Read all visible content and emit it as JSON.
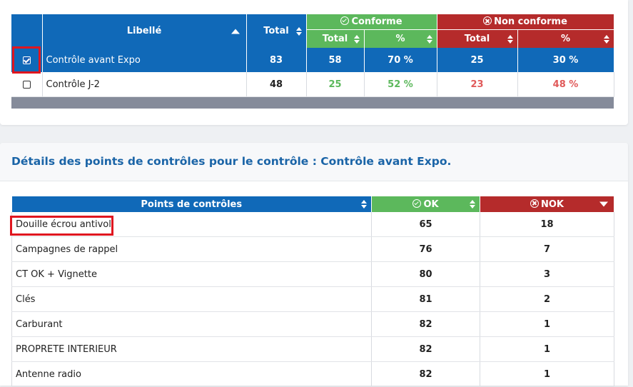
{
  "summary": {
    "headers": {
      "libelle": "Libellé",
      "total": "Total",
      "conforme": "Conforme",
      "non_conforme": "Non conforme",
      "sub_total": "Total",
      "sub_pct": "%"
    },
    "rows": [
      {
        "selected": true,
        "label": "Contrôle avant Expo",
        "total": "83",
        "c_total": "58",
        "c_pct": "70 %",
        "nc_total": "25",
        "nc_pct": "30 %"
      },
      {
        "selected": false,
        "label": "Contrôle J-2",
        "total": "48",
        "c_total": "25",
        "c_pct": "52 %",
        "nc_total": "23",
        "nc_pct": "48 %"
      }
    ]
  },
  "details": {
    "title": "Détails des points de contrôles pour le contrôle : Contrôle avant Expo.",
    "headers": {
      "points": "Points de contrôles",
      "ok": "OK",
      "nok": "NOK"
    },
    "rows": [
      {
        "name": "Douille écrou antivol",
        "ok": "65",
        "nok": "18"
      },
      {
        "name": "Campagnes de rappel",
        "ok": "76",
        "nok": "7"
      },
      {
        "name": "CT OK + Vignette",
        "ok": "80",
        "nok": "3"
      },
      {
        "name": "Clés",
        "ok": "81",
        "nok": "2"
      },
      {
        "name": "Carburant",
        "ok": "82",
        "nok": "1"
      },
      {
        "name": "PROPRETE INTERIEUR",
        "ok": "82",
        "nok": "1"
      },
      {
        "name": "Antenne radio",
        "ok": "82",
        "nok": "1"
      }
    ]
  },
  "colors": {
    "blue": "#1069b8",
    "green": "#5cb85c",
    "red": "#b52b2b",
    "highlight": "#e0161f"
  }
}
